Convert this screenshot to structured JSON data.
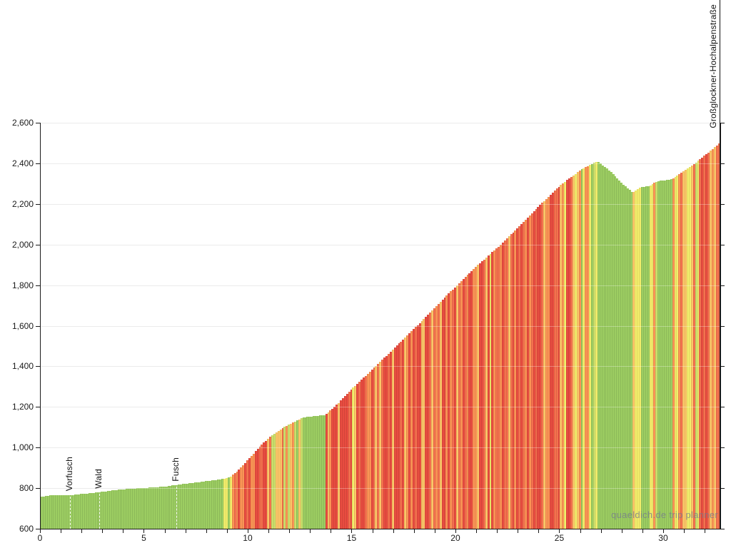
{
  "chart_data": {
    "type": "area",
    "title": "",
    "xlabel": "",
    "ylabel": "",
    "x_unit": "km",
    "y_unit": "m",
    "xlim": [
      0,
      32.75
    ],
    "ylim": [
      600,
      2600
    ],
    "grid": true,
    "x_major_ticks": [
      0,
      5,
      10,
      15,
      20,
      25,
      30
    ],
    "x_minor_tick_step": 1,
    "y_ticks": [
      600,
      800,
      1000,
      1200,
      1400,
      1600,
      1800,
      2000,
      2200,
      2400,
      2600
    ],
    "y_tick_labels": [
      "600",
      "800",
      "1,000",
      "1,200",
      "1,400",
      "1,600",
      "1,800",
      "2,000",
      "2,200",
      "2,400",
      "2,600"
    ],
    "segment_km": 0.1,
    "elevation_profile_km_m": [
      [
        0,
        757
      ],
      [
        0.35,
        763
      ],
      [
        0.9,
        766
      ],
      [
        1.45,
        766
      ],
      [
        2.0,
        771
      ],
      [
        2.85,
        780
      ],
      [
        3.6,
        791
      ],
      [
        4.2,
        796
      ],
      [
        5.0,
        801
      ],
      [
        6.0,
        808
      ],
      [
        6.55,
        816
      ],
      [
        7.3,
        826
      ],
      [
        8.3,
        838
      ],
      [
        8.8,
        846
      ],
      [
        9.15,
        858
      ],
      [
        9.5,
        885
      ],
      [
        10.6,
        1010
      ],
      [
        11.1,
        1058
      ],
      [
        11.7,
        1100
      ],
      [
        12.25,
        1128
      ],
      [
        12.6,
        1148
      ],
      [
        13.0,
        1152
      ],
      [
        13.7,
        1160
      ],
      [
        14.3,
        1215
      ],
      [
        15.0,
        1290
      ],
      [
        16.0,
        1388
      ],
      [
        17.0,
        1487
      ],
      [
        18.0,
        1588
      ],
      [
        19.0,
        1690
      ],
      [
        20.0,
        1795
      ],
      [
        21.0,
        1895
      ],
      [
        22.0,
        1985
      ],
      [
        23.0,
        2085
      ],
      [
        24.0,
        2190
      ],
      [
        25.0,
        2290
      ],
      [
        26.0,
        2368
      ],
      [
        26.8,
        2410
      ],
      [
        27.4,
        2362
      ],
      [
        28.1,
        2290
      ],
      [
        28.5,
        2256
      ],
      [
        28.9,
        2282
      ],
      [
        29.3,
        2288
      ],
      [
        29.7,
        2312
      ],
      [
        30.4,
        2322
      ],
      [
        31.0,
        2366
      ],
      [
        31.6,
        2408
      ],
      [
        32.2,
        2458
      ],
      [
        32.75,
        2505
      ]
    ],
    "markers": [
      {
        "km": 1.45,
        "label": "Vorfusch",
        "style": "dashed-white"
      },
      {
        "km": 2.85,
        "label": "Wald",
        "style": "dashed-white"
      },
      {
        "km": 6.55,
        "label": "Fusch",
        "style": "dashed-white"
      },
      {
        "km": 32.75,
        "label": "Großglockner-Hochalpenstraße",
        "style": "end-solid-black"
      }
    ],
    "gradient_color_scale": [
      {
        "max_percent": 2.5,
        "color": "#9ccd62",
        "meaning": "flat or downhill"
      },
      {
        "max_percent": 4.5,
        "color": "#cbdf6b",
        "meaning": "easy"
      },
      {
        "max_percent": 6.5,
        "color": "#f3ee6b",
        "meaning": "moderate"
      },
      {
        "max_percent": 8.0,
        "color": "#fcc668",
        "meaning": "challenging"
      },
      {
        "max_percent": 9.5,
        "color": "#fb9455",
        "meaning": "hard"
      },
      {
        "max_percent": 11.0,
        "color": "#f4714e",
        "meaning": "very hard"
      },
      {
        "max_percent": 99,
        "color": "#e84c40",
        "meaning": "extreme"
      }
    ],
    "watermark": "quaeldich.de trip planner"
  }
}
